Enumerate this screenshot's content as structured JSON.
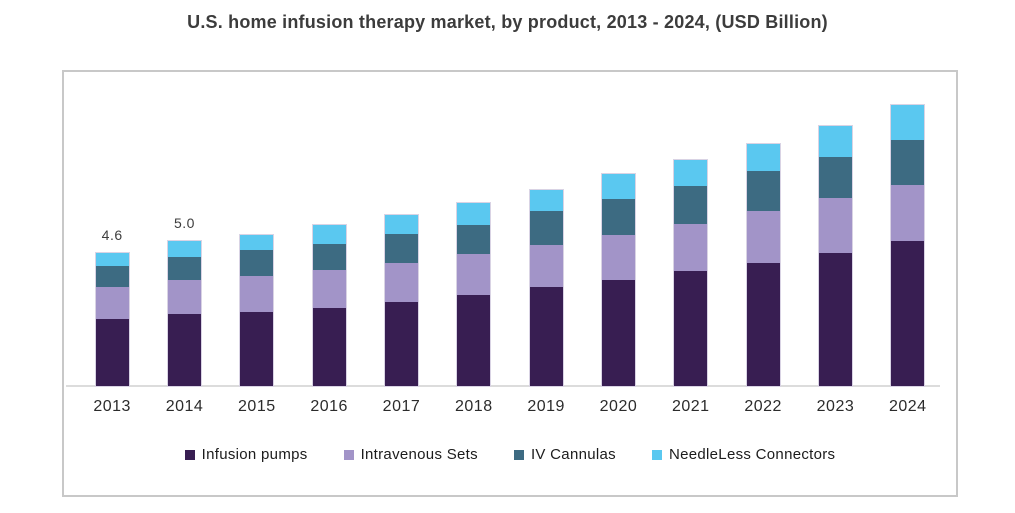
{
  "chart_data": {
    "type": "bar",
    "stacked": true,
    "title": "U.S. home infusion therapy market, by product, 2013 - 2024, (USD Billion)",
    "unit": "USD Billion",
    "categories": [
      "2013",
      "2014",
      "2015",
      "2016",
      "2017",
      "2018",
      "2019",
      "2020",
      "2021",
      "2022",
      "2023",
      "2024"
    ],
    "series": [
      {
        "name": "Infusion pumps",
        "color": "#381e52",
        "values": [
          2.3,
          2.5,
          2.55,
          2.7,
          2.9,
          3.15,
          3.4,
          3.65,
          3.95,
          4.25,
          4.6,
          5.0
        ]
      },
      {
        "name": "Intravenous Sets",
        "color": "#a294c8",
        "values": [
          1.1,
          1.15,
          1.25,
          1.3,
          1.35,
          1.4,
          1.45,
          1.55,
          1.65,
          1.8,
          1.9,
          1.95
        ]
      },
      {
        "name": "IV Cannulas",
        "color": "#3d6b82",
        "values": [
          0.75,
          0.8,
          0.9,
          0.9,
          1.0,
          1.0,
          1.2,
          1.25,
          1.3,
          1.35,
          1.4,
          1.55
        ]
      },
      {
        "name": "NeedleLess Connectors",
        "color": "#5ac8f0",
        "values": [
          0.45,
          0.55,
          0.5,
          0.65,
          0.65,
          0.75,
          0.7,
          0.85,
          0.9,
          0.95,
          1.05,
          1.2
        ]
      }
    ],
    "totals": [
      4.6,
      5.0,
      5.2,
      5.55,
      5.9,
      6.3,
      6.75,
      7.3,
      7.8,
      8.35,
      8.95,
      9.7
    ],
    "annotations": [
      {
        "index": 0,
        "text": "4.6"
      },
      {
        "index": 1,
        "text": "5.0"
      }
    ],
    "ylim": [
      0,
      10.9
    ],
    "y_axis_visible": false,
    "grid": false,
    "legend_position": "bottom",
    "frame_border_color": "#c8c8c8",
    "axis_line_color": "#dcdcdc"
  }
}
